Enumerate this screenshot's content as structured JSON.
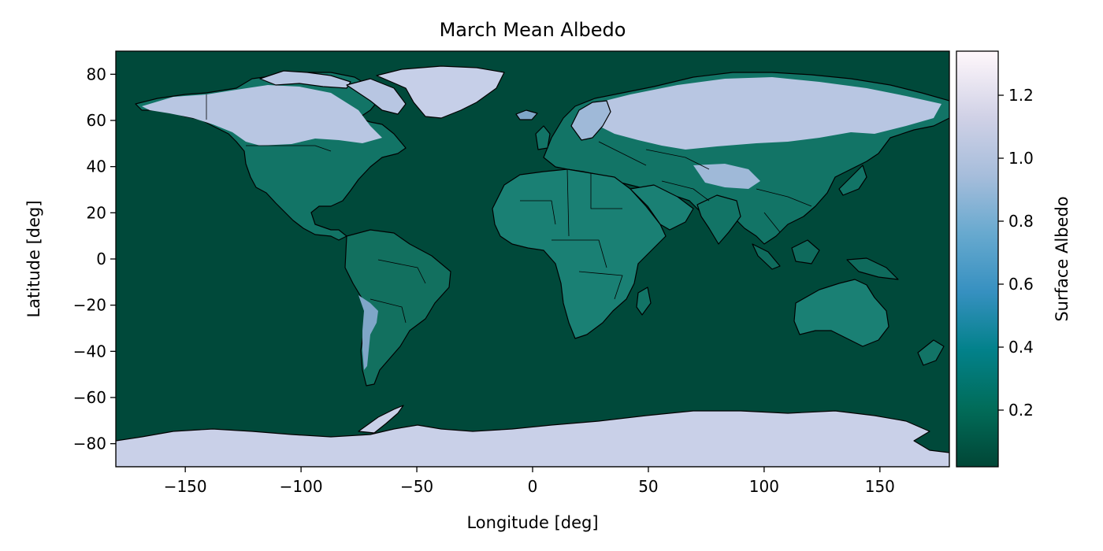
{
  "title": "March Mean Albedo",
  "xlabel": "Longitude [deg]",
  "ylabel": "Latitude [deg]",
  "colorbar_label": "Surface Albedo",
  "x_ticks": [
    "−150",
    "−100",
    "−50",
    "0",
    "50",
    "100",
    "150"
  ],
  "y_ticks": [
    "80",
    "60",
    "40",
    "20",
    "0",
    "−20",
    "−40",
    "−60",
    "−80"
  ],
  "colorbar_ticks": [
    "0.2",
    "0.4",
    "0.6",
    "0.8",
    "1.0",
    "1.2"
  ],
  "chart_data": {
    "type": "heatmap",
    "title": "March Mean Albedo",
    "xlabel": "Longitude [deg]",
    "ylabel": "Latitude [deg]",
    "xlim": [
      -180,
      180
    ],
    "ylim": [
      -90,
      90
    ],
    "x_tick_values": [
      -150,
      -100,
      -50,
      0,
      50,
      100,
      150
    ],
    "y_tick_values": [
      80,
      60,
      40,
      20,
      0,
      -20,
      -40,
      -60,
      -80
    ],
    "colorbar": {
      "label": "Surface Albedo",
      "range": [
        0.02,
        1.34
      ],
      "tick_values": [
        0.2,
        0.4,
        0.6,
        0.8,
        1.0,
        1.2
      ],
      "colormap": "PuBuGn_r"
    },
    "colors": {
      "ocean": "#00493a",
      "land_low": "#0a6e5e",
      "land_mid": "#1a8074",
      "snow": "#c6cfe8",
      "border": "#000000"
    }
  }
}
